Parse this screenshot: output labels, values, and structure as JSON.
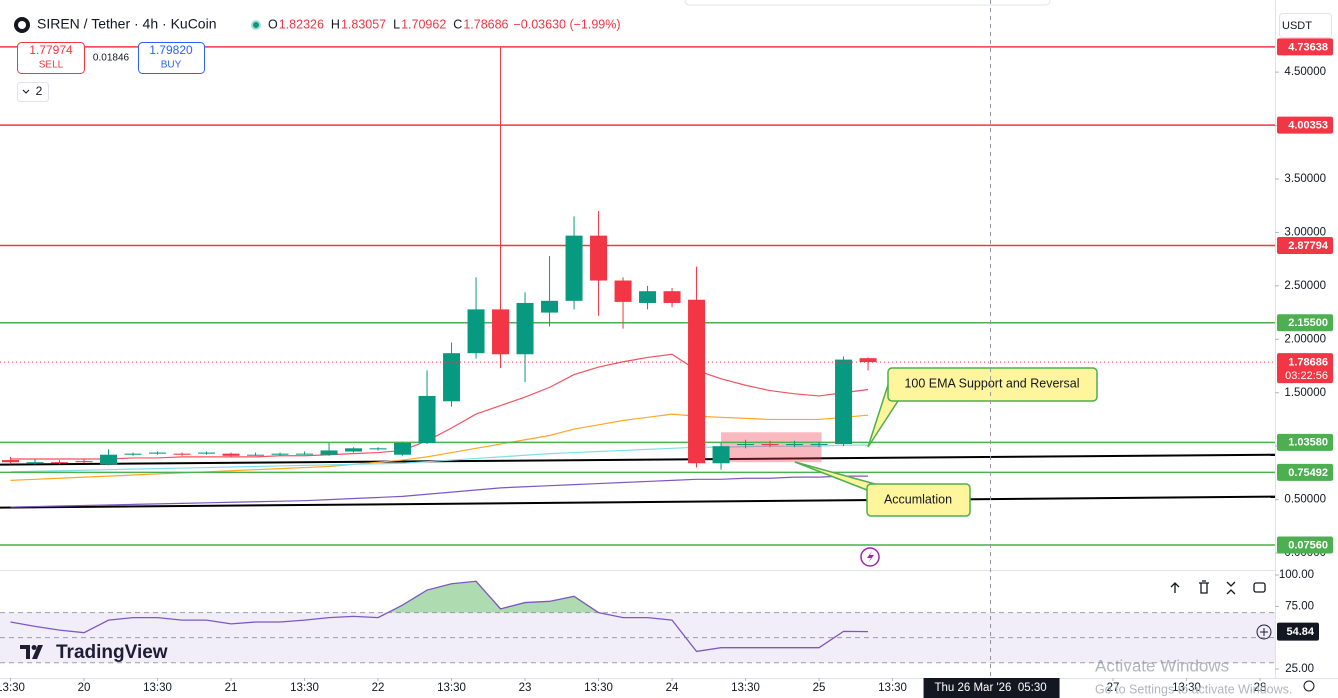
{
  "chart_data": {
    "type": "candlestick",
    "title": "SIREN / Tether · 4h · KuCoin",
    "ohlc_labels": [
      "O",
      "H",
      "L",
      "C"
    ],
    "change_label": "−0.03630 (−1.99%)",
    "currency": "USDT",
    "up_color": "#089981",
    "down_color": "#f23645",
    "open": [
      0.87,
      0.85,
      0.85,
      0.86,
      0.83,
      0.92,
      0.93,
      0.93,
      0.93,
      0.93,
      0.92,
      0.92,
      0.93,
      0.92,
      0.95,
      0.97,
      0.92,
      1.03,
      1.42,
      1.87,
      2.28,
      1.86,
      2.25,
      2.36,
      2.97,
      2.55,
      2.34,
      2.45,
      2.37,
      0.84,
      1.01,
      1.02,
      1.01,
      1.01,
      1.02,
      1.82326
    ],
    "high": [
      0.9,
      0.88,
      0.87,
      0.88,
      0.97,
      0.94,
      0.95,
      0.94,
      0.95,
      0.94,
      0.94,
      0.94,
      0.95,
      1.03,
      0.99,
      0.99,
      1.04,
      1.71,
      1.97,
      2.58,
      4.74,
      2.44,
      2.78,
      3.15,
      3.2,
      2.58,
      2.5,
      2.48,
      2.68,
      1.03,
      1.06,
      1.05,
      1.05,
      1.04,
      1.84,
      1.83057
    ],
    "low": [
      0.83,
      0.83,
      0.83,
      0.84,
      0.82,
      0.91,
      0.92,
      0.91,
      0.92,
      0.9,
      0.91,
      0.91,
      0.92,
      0.91,
      0.94,
      0.96,
      0.91,
      1.02,
      1.37,
      1.82,
      1.73,
      1.6,
      2.12,
      2.28,
      2.22,
      2.1,
      2.28,
      2.3,
      0.8,
      0.78,
      0.98,
      0.99,
      0.99,
      0.99,
      1.0,
      1.70962
    ],
    "close": [
      0.85,
      0.85,
      0.84,
      0.85,
      0.92,
      0.93,
      0.94,
      0.92,
      0.94,
      0.91,
      0.92,
      0.93,
      0.93,
      0.96,
      0.98,
      0.98,
      1.03,
      1.47,
      1.87,
      2.28,
      1.86,
      2.34,
      2.36,
      2.97,
      2.55,
      2.35,
      2.45,
      2.34,
      0.84,
      1.0,
      1.02,
      1.01,
      1.02,
      1.02,
      1.81,
      1.78686
    ],
    "countdown": "03:22:56",
    "series": [
      {
        "color": "#f7525f",
        "values": [
          0.88,
          0.88,
          0.88,
          0.88,
          0.88,
          0.89,
          0.89,
          0.9,
          0.9,
          0.9,
          0.9,
          0.91,
          0.91,
          0.92,
          0.93,
          0.94,
          0.96,
          1.05,
          1.17,
          1.3,
          1.38,
          1.46,
          1.55,
          1.67,
          1.74,
          1.79,
          1.83,
          1.86,
          1.71,
          1.63,
          1.57,
          1.52,
          1.49,
          1.47,
          1.5,
          1.53
        ]
      },
      {
        "color": "#ffa726",
        "values": [
          0.68,
          0.69,
          0.7,
          0.71,
          0.72,
          0.73,
          0.74,
          0.75,
          0.76,
          0.77,
          0.78,
          0.79,
          0.8,
          0.81,
          0.83,
          0.85,
          0.87,
          0.9,
          0.94,
          0.98,
          1.02,
          1.06,
          1.1,
          1.16,
          1.2,
          1.24,
          1.27,
          1.3,
          1.28,
          1.27,
          1.26,
          1.25,
          1.25,
          1.25,
          1.27,
          1.29
        ]
      },
      {
        "color": "#80deea",
        "values": [
          0.76,
          0.765,
          0.77,
          0.775,
          0.78,
          0.785,
          0.79,
          0.795,
          0.8,
          0.805,
          0.81,
          0.815,
          0.82,
          0.825,
          0.83,
          0.835,
          0.84,
          0.855,
          0.87,
          0.885,
          0.9,
          0.915,
          0.93,
          0.94,
          0.95,
          0.96,
          0.97,
          0.98,
          0.99,
          0.99,
          0.995,
          1,
          1,
          1,
          1.01,
          1.01
        ]
      },
      {
        "color": "#7e57c2",
        "values": [
          0.43,
          0.435,
          0.44,
          0.445,
          0.45,
          0.455,
          0.46,
          0.465,
          0.47,
          0.475,
          0.48,
          0.485,
          0.49,
          0.5,
          0.51,
          0.52,
          0.53,
          0.55,
          0.57,
          0.59,
          0.61,
          0.62,
          0.63,
          0.64,
          0.65,
          0.66,
          0.67,
          0.68,
          0.69,
          0.69,
          0.7,
          0.7,
          0.71,
          0.71,
          0.72,
          0.72
        ]
      }
    ],
    "xlim": [
      -0.43,
      51.61
    ],
    "ylim": [
      -0.14,
      5.1
    ],
    "xticks": [
      {
        "value": 0,
        "label": "13:30"
      },
      {
        "value": 3,
        "label": "20"
      },
      {
        "value": 6,
        "label": "13:30"
      },
      {
        "value": 9,
        "label": "21"
      },
      {
        "value": 12,
        "label": "13:30"
      },
      {
        "value": 15,
        "label": "22"
      },
      {
        "value": 18,
        "label": "13:30"
      },
      {
        "value": 21,
        "label": "23"
      },
      {
        "value": 24,
        "label": "13:30"
      },
      {
        "value": 27,
        "label": "24"
      },
      {
        "value": 30,
        "label": "13:30"
      },
      {
        "value": 33,
        "label": "25"
      },
      {
        "value": 36,
        "label": "13:30"
      },
      {
        "value": 45,
        "label": "27"
      },
      {
        "value": 48,
        "label": "13:30"
      },
      {
        "value": 51,
        "label": "28"
      }
    ],
    "yticks": [
      {
        "value": 0,
        "label": "0.00000"
      },
      {
        "value": 0.5,
        "label": "0.50000"
      },
      {
        "value": 1,
        "label": "1.00000"
      },
      {
        "value": 1.5,
        "label": "1.50000"
      },
      {
        "value": 2,
        "label": "2.00000"
      },
      {
        "value": 2.5,
        "label": "2.50000"
      },
      {
        "value": 3,
        "label": "3.00000"
      },
      {
        "value": 3.5,
        "label": "3.50000"
      },
      {
        "value": 4,
        "label": "4.00000"
      },
      {
        "value": 4.5,
        "label": "4.50000"
      }
    ],
    "levels": [
      {
        "value": 4.73638,
        "color": "#f23645"
      },
      {
        "value": 4.00353,
        "color": "#f23645"
      },
      {
        "value": 2.87794,
        "color": "#f23645"
      },
      {
        "value": {
          "value": 2.155,
          "label": "2.15500"
        },
        "color": "#4caf50"
      },
      {
        "value": {
          "value": 1.0358,
          "label": "1.03580"
        },
        "color": "#4caf50"
      },
      {
        "value": 0.75492,
        "color": "#4caf50"
      },
      {
        "value": {
          "value": 0.0756,
          "label": "0.07560"
        },
        "color": "#4caf50"
      }
    ],
    "trendlines": [
      {
        "x": [
          -0.43,
          51.61
        ],
        "values": [
          0.827,
          0.92
        ],
        "color": "#000000"
      },
      {
        "x": [
          -0.43,
          51.61
        ],
        "values": [
          0.425,
          0.528
        ],
        "color": "#000000"
      }
    ],
    "zone": {
      "x": [
        29,
        33.1
      ],
      "values": [
        1.13,
        0.85
      ],
      "color": "rgba(242,54,69,0.35)"
    },
    "annotations": [
      {
        "text": "100 EMA Support and Reversal"
      },
      {
        "text": "Accumlation"
      }
    ],
    "crosshair": {
      "x": 40,
      "label": "Thu 26 Mar '26  05:30"
    },
    "rsi": {
      "color": "#7e57c2",
      "values": [
        62.5,
        59,
        56,
        54,
        64,
        66,
        66,
        64,
        64,
        61,
        62.5,
        62.5,
        64,
        66,
        67,
        66,
        76,
        88,
        93,
        95,
        73,
        78,
        79,
        83,
        70,
        66,
        66,
        64,
        39,
        42,
        42,
        42,
        42,
        42,
        55,
        54.84
      ],
      "ylim": [
        20.2,
        104
      ],
      "yticks": [
        {
          "value": 100,
          "label": "100.00"
        },
        {
          "value": 75,
          "label": "75.00"
        },
        {
          "value": 25,
          "label": "25.00"
        }
      ],
      "bands": [
        70,
        50,
        30
      ]
    }
  },
  "ui": {
    "sell_price": "1.77974",
    "sell": "SELL",
    "spread": "0.01846",
    "buy_price": "1.79820",
    "buy": "BUY",
    "indicators": "2",
    "logo": "TradingView",
    "watermark": [
      "Activate Windows",
      "Go to Settings to activate Windows."
    ]
  }
}
